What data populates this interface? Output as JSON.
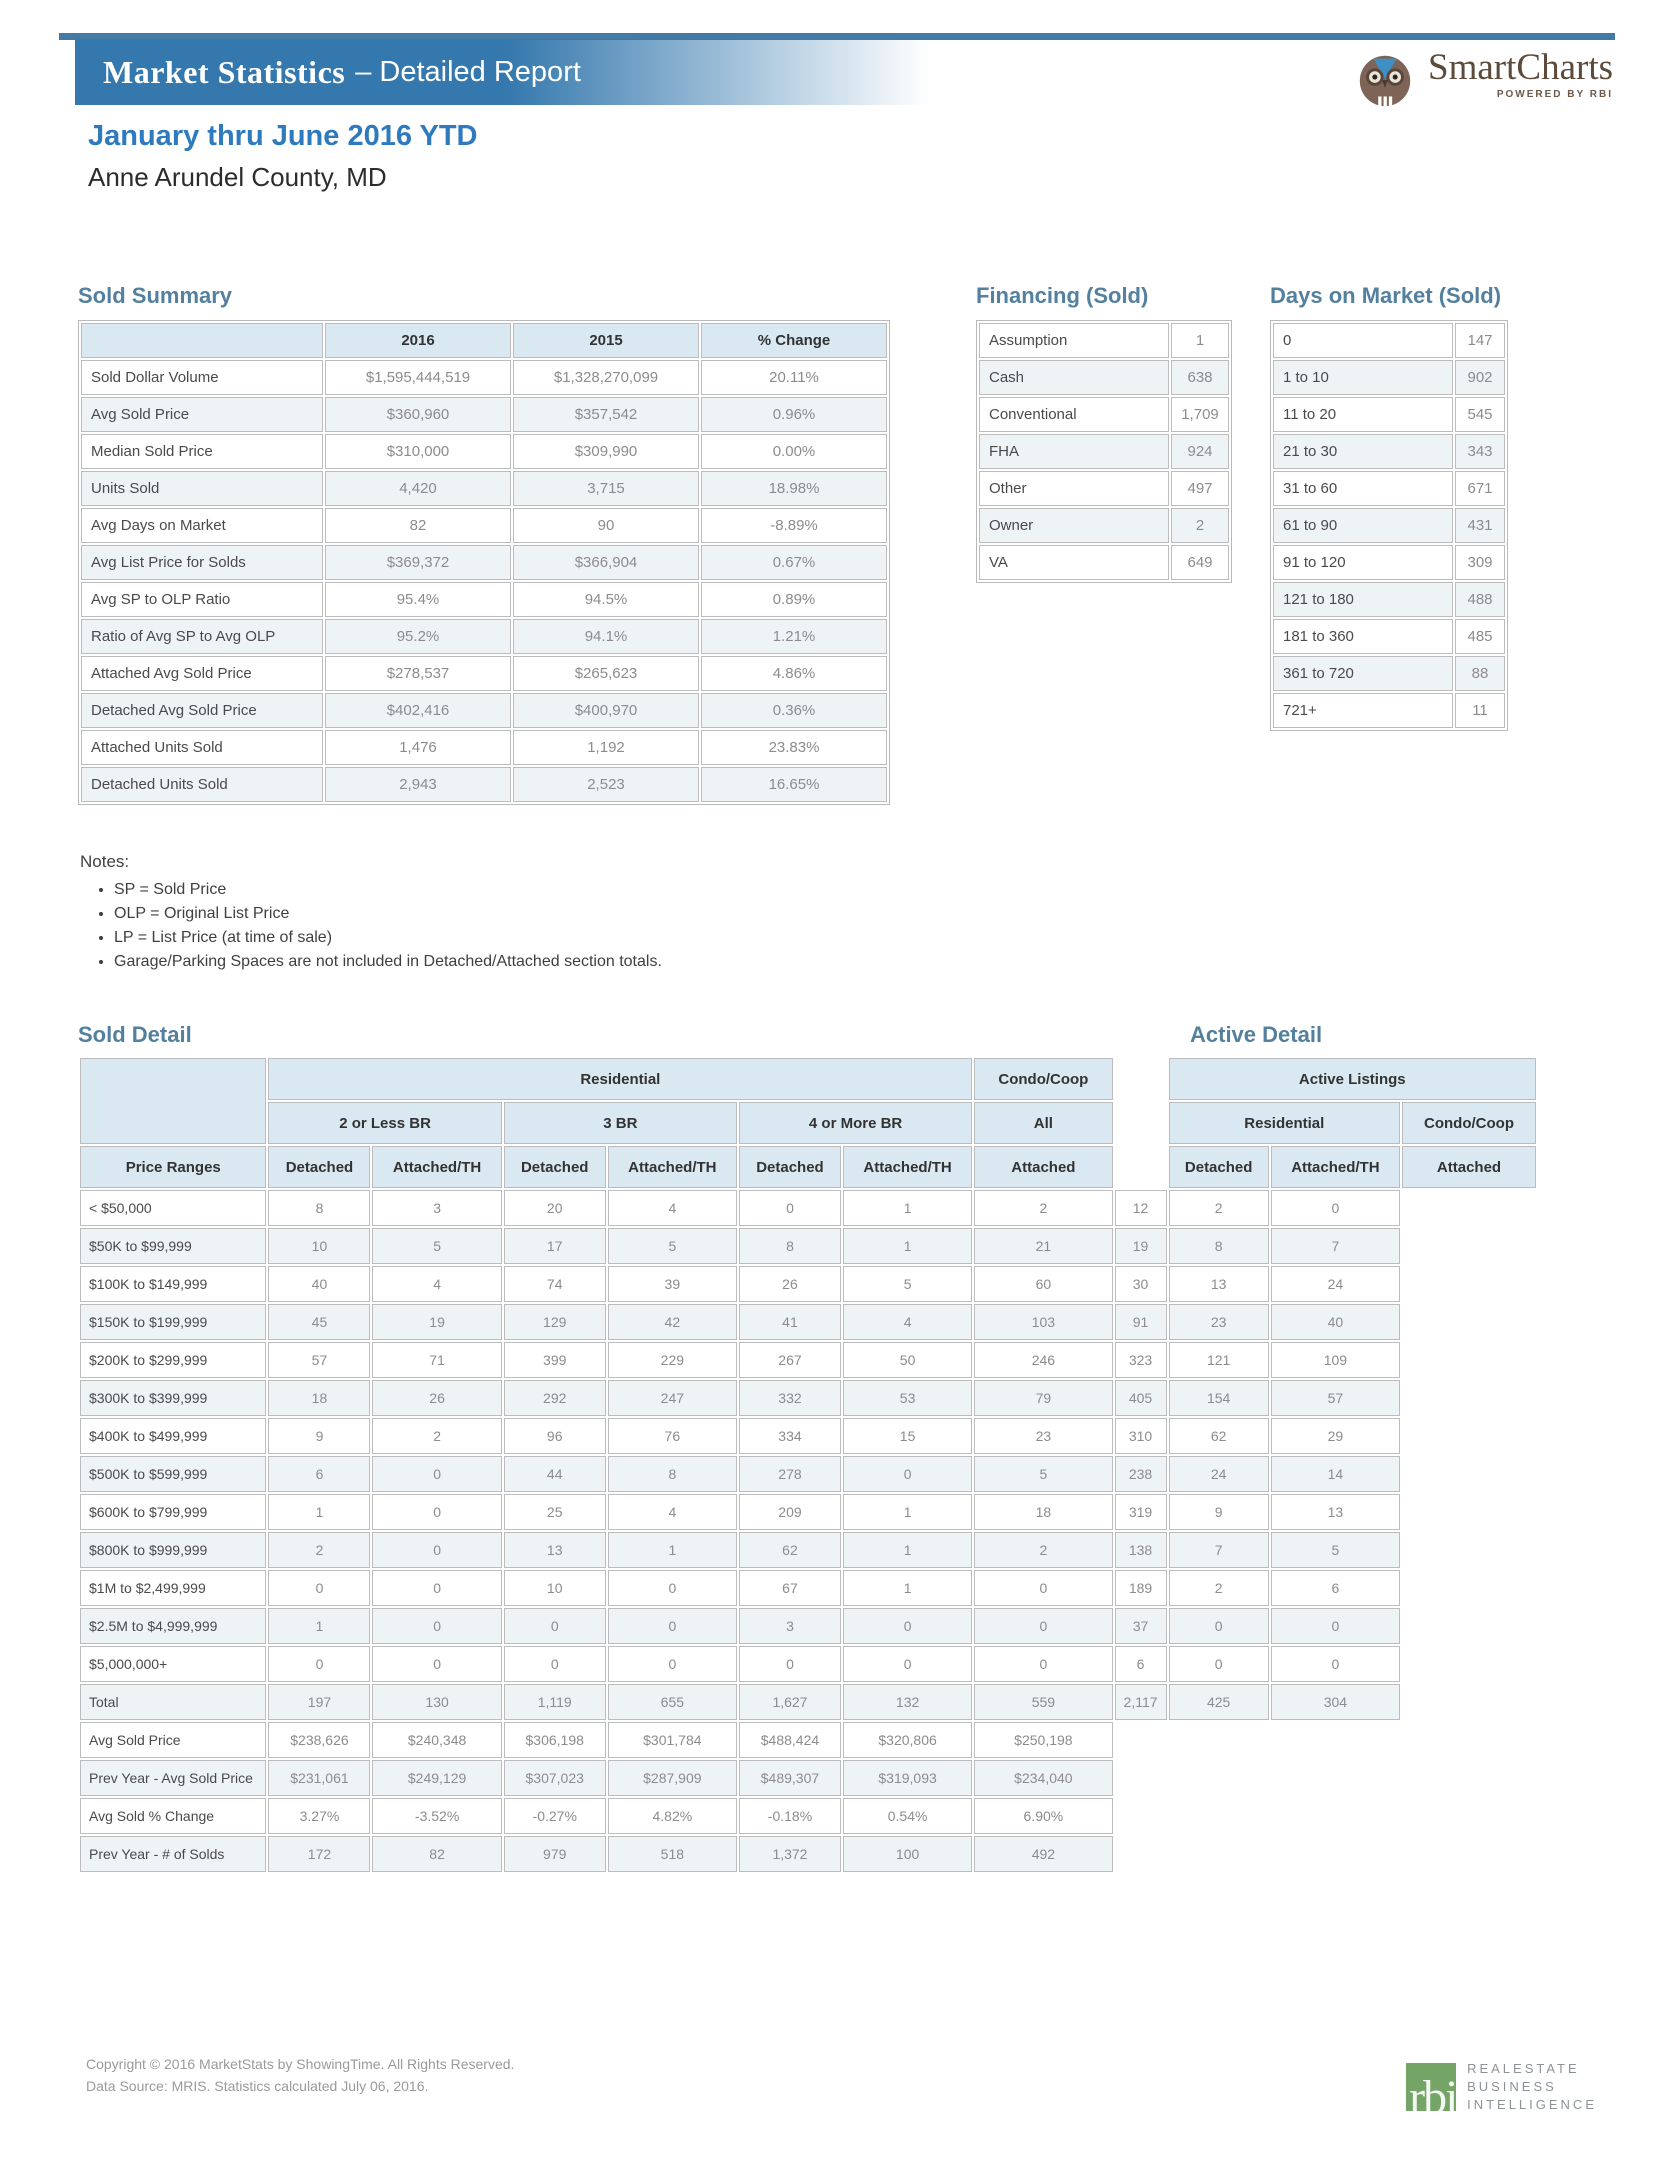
{
  "header": {
    "title_primary": "Market Statistics",
    "title_secondary": "– Detailed Report"
  },
  "logo": {
    "name": "SmartCharts",
    "tagline": "POWERED BY RBI"
  },
  "report": {
    "period": "January thru June 2016 YTD",
    "location": "Anne Arundel County, MD"
  },
  "colors": {
    "bar_blue": "#3478ad",
    "title_blue": "#2e7abf",
    "section_blue": "#54809f",
    "table_header_bg": "#d9e8f1",
    "row_alt_bg": "#eef4f6",
    "rbi_green": "#74a566"
  },
  "sold_summary": {
    "title": "Sold Summary",
    "columns": [
      "2016",
      "2015",
      "% Change"
    ],
    "rows": [
      [
        "Sold Dollar Volume",
        "$1,595,444,519",
        "$1,328,270,099",
        "20.11%"
      ],
      [
        "Avg Sold Price",
        "$360,960",
        "$357,542",
        "0.96%"
      ],
      [
        "Median Sold Price",
        "$310,000",
        "$309,990",
        "0.00%"
      ],
      [
        "Units Sold",
        "4,420",
        "3,715",
        "18.98%"
      ],
      [
        "Avg Days on Market",
        "82",
        "90",
        "-8.89%"
      ],
      [
        "Avg List Price for Solds",
        "$369,372",
        "$366,904",
        "0.67%"
      ],
      [
        "Avg SP to OLP Ratio",
        "95.4%",
        "94.5%",
        "0.89%"
      ],
      [
        "Ratio of Avg SP to Avg OLP",
        "95.2%",
        "94.1%",
        "1.21%"
      ],
      [
        "Attached Avg Sold Price",
        "$278,537",
        "$265,623",
        "4.86%"
      ],
      [
        "Detached Avg Sold Price",
        "$402,416",
        "$400,970",
        "0.36%"
      ],
      [
        "Attached Units Sold",
        "1,476",
        "1,192",
        "23.83%"
      ],
      [
        "Detached Units Sold",
        "2,943",
        "2,523",
        "16.65%"
      ]
    ]
  },
  "financing": {
    "title": "Financing (Sold)",
    "rows": [
      [
        "Assumption",
        "1"
      ],
      [
        "Cash",
        "638"
      ],
      [
        "Conventional",
        "1,709"
      ],
      [
        "FHA",
        "924"
      ],
      [
        "Other",
        "497"
      ],
      [
        "Owner",
        "2"
      ],
      [
        "VA",
        "649"
      ]
    ]
  },
  "days_on_market": {
    "title": "Days on Market (Sold)",
    "rows": [
      [
        "0",
        "147"
      ],
      [
        "1 to 10",
        "902"
      ],
      [
        "11 to 20",
        "545"
      ],
      [
        "21 to 30",
        "343"
      ],
      [
        "31 to 60",
        "671"
      ],
      [
        "61 to 90",
        "431"
      ],
      [
        "91 to 120",
        "309"
      ],
      [
        "121 to 180",
        "488"
      ],
      [
        "181 to 360",
        "485"
      ],
      [
        "361 to 720",
        "88"
      ],
      [
        "721+",
        "11"
      ]
    ]
  },
  "notes": {
    "label": "Notes:",
    "items": [
      "SP = Sold Price",
      "OLP = Original List Price",
      "LP = List Price (at time of sale)",
      "Garage/Parking Spaces are not included in Detached/Attached section totals."
    ]
  },
  "sold_detail": {
    "title": "Sold Detail",
    "active_title": "Active Detail",
    "header": {
      "row1": {
        "residential": "Residential",
        "condo": "Condo/Coop",
        "active": "Active Listings"
      },
      "row2": {
        "br2": "2 or Less BR",
        "br3": "3 BR",
        "br4": "4 or More BR",
        "all": "All",
        "act_res": "Residential",
        "act_condo": "Condo/Coop"
      },
      "row3": {
        "label": "Price Ranges",
        "sold_cols": [
          "Detached",
          "Attached/TH",
          "Detached",
          "Attached/TH",
          "Detached",
          "Attached/TH",
          "Attached"
        ],
        "active_cols": [
          "Detached",
          "Attached/TH",
          "Attached"
        ]
      }
    },
    "rows": [
      {
        "range": "< $50,000",
        "sold": [
          "8",
          "3",
          "20",
          "4",
          "0",
          "1",
          "2"
        ],
        "active": [
          "12",
          "2",
          "0"
        ]
      },
      {
        "range": "$50K to $99,999",
        "sold": [
          "10",
          "5",
          "17",
          "5",
          "8",
          "1",
          "21"
        ],
        "active": [
          "19",
          "8",
          "7"
        ]
      },
      {
        "range": "$100K to $149,999",
        "sold": [
          "40",
          "4",
          "74",
          "39",
          "26",
          "5",
          "60"
        ],
        "active": [
          "30",
          "13",
          "24"
        ]
      },
      {
        "range": "$150K to $199,999",
        "sold": [
          "45",
          "19",
          "129",
          "42",
          "41",
          "4",
          "103"
        ],
        "active": [
          "91",
          "23",
          "40"
        ]
      },
      {
        "range": "$200K to $299,999",
        "sold": [
          "57",
          "71",
          "399",
          "229",
          "267",
          "50",
          "246"
        ],
        "active": [
          "323",
          "121",
          "109"
        ]
      },
      {
        "range": "$300K to $399,999",
        "sold": [
          "18",
          "26",
          "292",
          "247",
          "332",
          "53",
          "79"
        ],
        "active": [
          "405",
          "154",
          "57"
        ]
      },
      {
        "range": "$400K to $499,999",
        "sold": [
          "9",
          "2",
          "96",
          "76",
          "334",
          "15",
          "23"
        ],
        "active": [
          "310",
          "62",
          "29"
        ]
      },
      {
        "range": "$500K to $599,999",
        "sold": [
          "6",
          "0",
          "44",
          "8",
          "278",
          "0",
          "5"
        ],
        "active": [
          "238",
          "24",
          "14"
        ]
      },
      {
        "range": "$600K to $799,999",
        "sold": [
          "1",
          "0",
          "25",
          "4",
          "209",
          "1",
          "18"
        ],
        "active": [
          "319",
          "9",
          "13"
        ]
      },
      {
        "range": "$800K to $999,999",
        "sold": [
          "2",
          "0",
          "13",
          "1",
          "62",
          "1",
          "2"
        ],
        "active": [
          "138",
          "7",
          "5"
        ]
      },
      {
        "range": "$1M to $2,499,999",
        "sold": [
          "0",
          "0",
          "10",
          "0",
          "67",
          "1",
          "0"
        ],
        "active": [
          "189",
          "2",
          "6"
        ]
      },
      {
        "range": "$2.5M to $4,999,999",
        "sold": [
          "1",
          "0",
          "0",
          "0",
          "3",
          "0",
          "0"
        ],
        "active": [
          "37",
          "0",
          "0"
        ]
      },
      {
        "range": "$5,000,000+",
        "sold": [
          "0",
          "0",
          "0",
          "0",
          "0",
          "0",
          "0"
        ],
        "active": [
          "6",
          "0",
          "0"
        ]
      }
    ],
    "total_row": {
      "label": "Total",
      "sold": [
        "197",
        "130",
        "1,119",
        "655",
        "1,627",
        "132",
        "559"
      ],
      "active": [
        "2,117",
        "425",
        "304"
      ]
    },
    "bottom_rows": [
      {
        "label": "Avg Sold Price",
        "sold": [
          "$238,626",
          "$240,348",
          "$306,198",
          "$301,784",
          "$488,424",
          "$320,806",
          "$250,198"
        ]
      },
      {
        "label": "Prev Year - Avg Sold Price",
        "sold": [
          "$231,061",
          "$249,129",
          "$307,023",
          "$287,909",
          "$489,307",
          "$319,093",
          "$234,040"
        ]
      },
      {
        "label": "Avg Sold % Change",
        "sold": [
          "3.27%",
          "-3.52%",
          "-0.27%",
          "4.82%",
          "-0.18%",
          "0.54%",
          "6.90%"
        ]
      },
      {
        "label": "Prev Year - # of Solds",
        "sold": [
          "172",
          "82",
          "979",
          "518",
          "1,372",
          "100",
          "492"
        ]
      }
    ]
  },
  "footer": {
    "line1": "Copyright © 2016 MarketStats by ShowingTime. All Rights Reserved.",
    "line2": "Data Source: MRIS. Statistics calculated July 06, 2016.",
    "rbi_lines": [
      "REALESTATE",
      "BUSINESS",
      "INTELLIGENCE"
    ],
    "rbi_mark": "rbi"
  }
}
